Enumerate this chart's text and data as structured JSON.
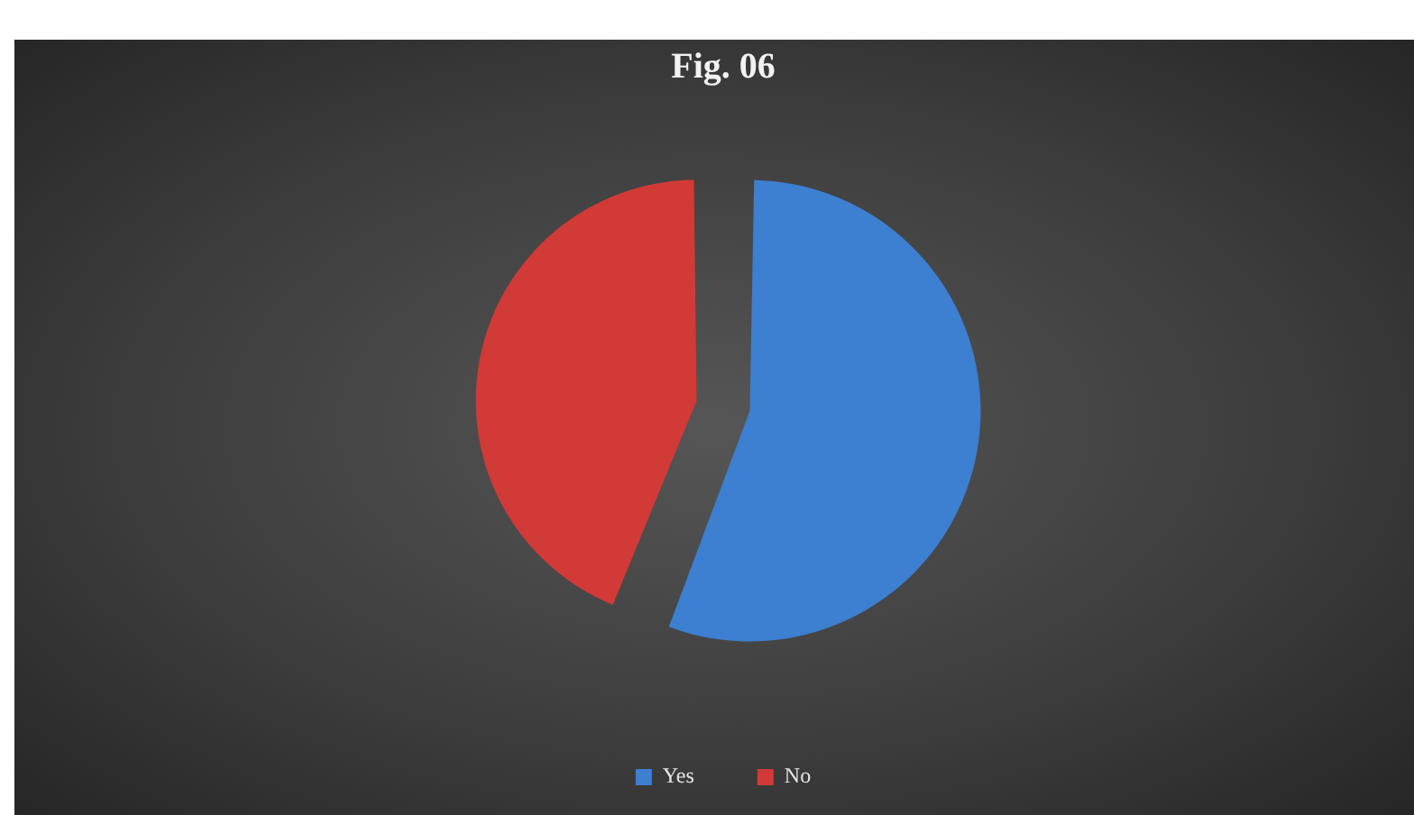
{
  "chart_data": {
    "type": "pie",
    "title": "Fig. 06",
    "categories": [
      "Yes",
      "No"
    ],
    "values": [
      56,
      44
    ],
    "colors": [
      "#3d7fd0",
      "#d23a37"
    ],
    "legend": "bottom"
  }
}
